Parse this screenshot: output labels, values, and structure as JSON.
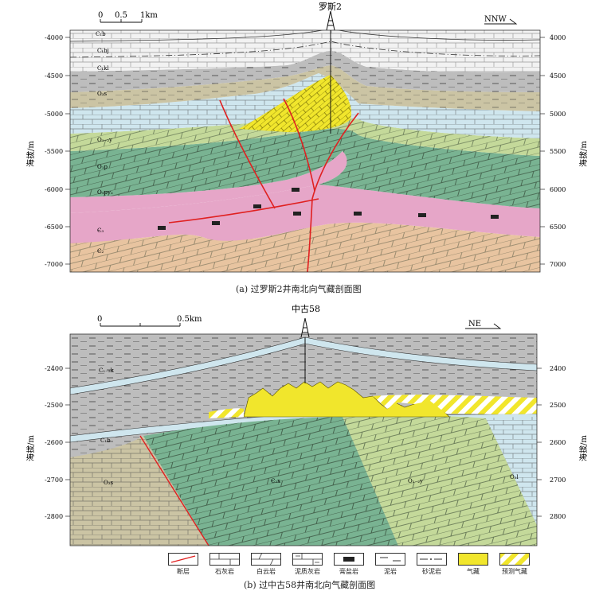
{
  "panel_a": {
    "well_name": "罗斯2",
    "direction": "NNW",
    "scale": {
      "zero": "0",
      "half": "0.5",
      "one": "1km"
    },
    "y_axis_label": "海拔/m",
    "depth_ticks": [
      "-4000",
      "-4500",
      "-5000",
      "-5500",
      "-6000",
      "-6500",
      "-7000"
    ],
    "right_ticks": [
      "4000",
      "4500",
      "5000",
      "5500",
      "6000",
      "6500",
      "7000"
    ],
    "layer_labels": [
      "C₁b",
      "C₁bj",
      "C₁kl",
      "O₃s",
      "O₁₋₂y",
      "O₁p",
      "O₁py₂",
      "Є₂",
      "Є₃"
    ],
    "caption": "(a) 过罗斯2井南北向气藏剖面图"
  },
  "panel_b": {
    "well_name": "中古58",
    "direction": "NE",
    "scale": {
      "zero": "0",
      "half": "0.5km"
    },
    "y_axis_label": "海拔/m",
    "depth_ticks": [
      "-2400",
      "-2500",
      "-2600",
      "-2700",
      "-2800"
    ],
    "right_ticks": [
      "2400",
      "2500",
      "2600",
      "2700",
      "2800"
    ],
    "layer_labels": [
      "C₁₋₂k",
      "C₁b",
      "O₃s",
      "Є₂x",
      "O₁₋₂y",
      "O₃l"
    ],
    "caption": "(b) 过中古58井南北向气藏剖面图"
  },
  "legend": {
    "items": [
      {
        "label": "断层",
        "icon": "fault-line-icon"
      },
      {
        "label": "石灰岩",
        "icon": "limestone-icon"
      },
      {
        "label": "白云岩",
        "icon": "dolomite-icon"
      },
      {
        "label": "泥质灰岩",
        "icon": "argillaceous-limestone-icon"
      },
      {
        "label": "膏盐岩",
        "icon": "gypsum-salt-icon"
      },
      {
        "label": "泥岩",
        "icon": "mudstone-icon"
      },
      {
        "label": "砂泥岩",
        "icon": "sandy-mudstone-icon"
      },
      {
        "label": "气藏",
        "icon": "gas-reservoir-icon"
      },
      {
        "label": "预测气藏",
        "icon": "predicted-gas-reservoir-icon"
      }
    ]
  },
  "colors": {
    "limestone_grey": "#c9c9c9",
    "light_blue": "#cfe6ee",
    "green_dark": "#79b392",
    "green_light": "#c4d99a",
    "pink": "#e6a6c8",
    "tan": "#e8c4a0",
    "khaki": "#cbc4a4",
    "gas_yellow": "#f1e62c",
    "fault_red": "#e02020"
  }
}
